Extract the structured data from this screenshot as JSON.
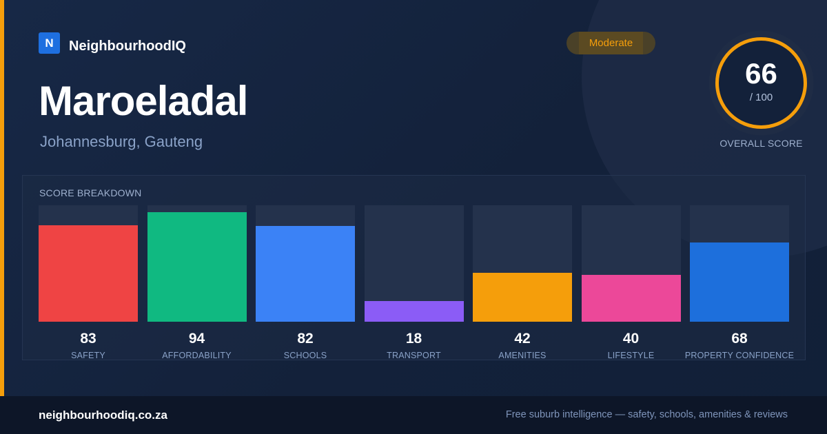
{
  "brand": {
    "logo_letter": "N",
    "name": "NeighbourhoodIQ",
    "color": "#1e6fe0"
  },
  "suburb": {
    "name": "Maroeladal",
    "location": "Johannesburg, Gauteng"
  },
  "rating_badge": "Moderate",
  "overall": {
    "score": "66",
    "max": "/ 100",
    "label": "OVERALL SCORE",
    "fraction": 0.66,
    "ring_color": "#f59e0b"
  },
  "breakdown": {
    "title": "SCORE BREAKDOWN",
    "items": [
      {
        "label": "SAFETY",
        "value": "83",
        "percent": 83,
        "color": "#ef4444"
      },
      {
        "label": "AFFORDABILITY",
        "value": "94",
        "percent": 94,
        "color": "#10b981"
      },
      {
        "label": "SCHOOLS",
        "value": "82",
        "percent": 82,
        "color": "#3b82f6"
      },
      {
        "label": "TRANSPORT",
        "value": "18",
        "percent": 18,
        "color": "#8b5cf6"
      },
      {
        "label": "AMENITIES",
        "value": "42",
        "percent": 42,
        "color": "#f59e0b"
      },
      {
        "label": "LIFESTYLE",
        "value": "40",
        "percent": 40,
        "color": "#ec4899"
      },
      {
        "label": "PROPERTY CONFIDENCE",
        "value": "68",
        "percent": 68,
        "color": "#1d6fdc"
      }
    ]
  },
  "footer": {
    "url": "neighbourhoodiq.co.za",
    "tagline": "Free suburb intelligence — safety, schools, amenities & reviews"
  },
  "colors": {
    "accent": "#f59e0b",
    "background": "#13213a"
  }
}
